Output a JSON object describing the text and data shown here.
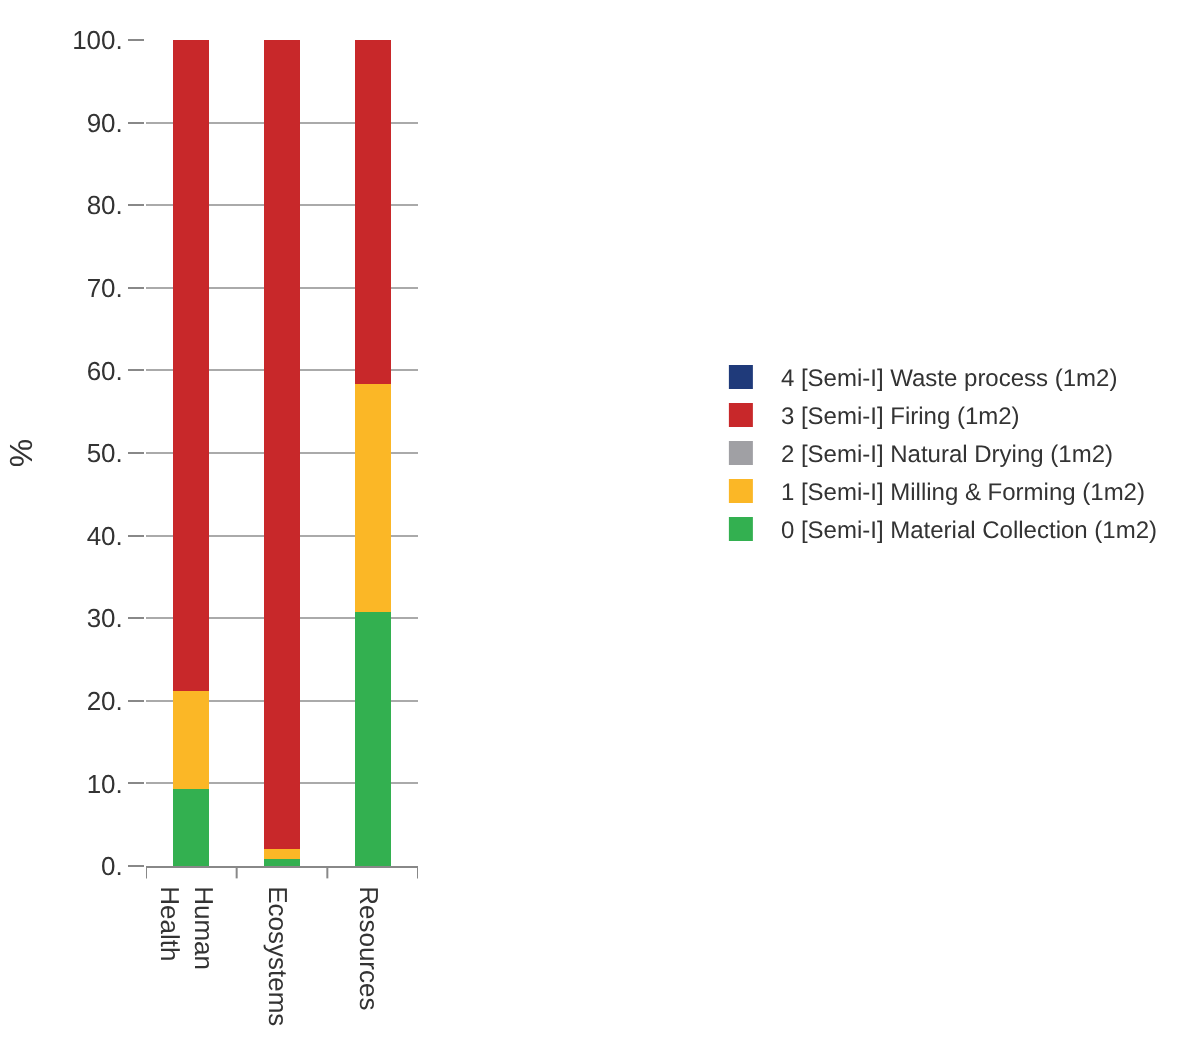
{
  "chart_data": {
    "type": "bar",
    "stacked": true,
    "ylabel": "%",
    "categories": [
      "Human Health",
      "Ecosystems",
      "Resources"
    ],
    "series": [
      {
        "name": "0 [Semi-I] Material Collection (1m2)",
        "color": "#33b050",
        "values": [
          9.3,
          0.8,
          30.8
        ]
      },
      {
        "name": "1 [Semi-I] Milling & Forming (1m2)",
        "color": "#fbb726",
        "values": [
          11.9,
          1.2,
          27.6
        ]
      },
      {
        "name": "2 [Semi-I] Natural Drying (1m2)",
        "color": "#a0a0a4",
        "values": [
          0,
          0,
          0
        ]
      },
      {
        "name": "3 [Semi-I] Firing (1m2)",
        "color": "#c8282a",
        "values": [
          78.8,
          98.0,
          41.6
        ]
      },
      {
        "name": "4 [Semi-I] Waste process (1m2)",
        "color": "#1f3a7a",
        "values": [
          0,
          0,
          0
        ]
      }
    ],
    "ylim": [
      0,
      100
    ],
    "yticks": [
      {
        "value": 0,
        "label": "0."
      },
      {
        "value": 10,
        "label": "10."
      },
      {
        "value": 20,
        "label": "20."
      },
      {
        "value": 30,
        "label": "30."
      },
      {
        "value": 40,
        "label": "40."
      },
      {
        "value": 50,
        "label": "50."
      },
      {
        "value": 60,
        "label": "60."
      },
      {
        "value": 70,
        "label": "70."
      },
      {
        "value": 80,
        "label": "80."
      },
      {
        "value": 90,
        "label": "90."
      },
      {
        "value": 100,
        "label": "100."
      }
    ],
    "grid": "y",
    "legend": "right"
  }
}
